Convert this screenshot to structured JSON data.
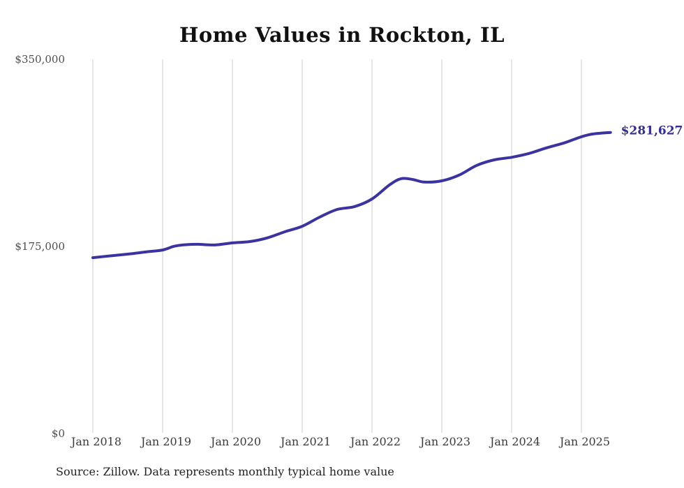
{
  "title": "Home Values in Rockton, IL",
  "source_note": "Source: Zillow. Data represents monthly typical home value",
  "colors": {
    "line": "#3b34a0",
    "end_label": "#332d96",
    "gridline": "#cccccc",
    "title_text": "#111111",
    "y_axis_text": "#4d4d4d",
    "x_axis_text": "#3a3a3a",
    "source_text": "#222222",
    "background": "#ffffff"
  },
  "chart_data": {
    "type": "line",
    "title": "Home Values in Rockton, IL",
    "xlabel": "",
    "ylabel": "",
    "ylim": [
      0,
      350000
    ],
    "y_ticks": [
      0,
      175000,
      350000
    ],
    "y_tick_labels": [
      "$0",
      "$175,000",
      "$350,000"
    ],
    "x_tick_years": [
      2018,
      2019,
      2020,
      2021,
      2022,
      2023,
      2024,
      2025
    ],
    "x_tick_labels": [
      "Jan 2018",
      "Jan 2019",
      "Jan 2020",
      "Jan 2021",
      "Jan 2022",
      "Jan 2023",
      "Jan 2024",
      "Jan 2025"
    ],
    "grid": "vertical-only",
    "legend": "none",
    "final_value": 281627,
    "final_value_label": "$281,627",
    "series": [
      {
        "name": "Monthly typical home value",
        "points": [
          [
            "2018-01",
            164500
          ],
          [
            "2018-04",
            166200
          ],
          [
            "2018-07",
            167800
          ],
          [
            "2018-10",
            169800
          ],
          [
            "2019-01",
            171700
          ],
          [
            "2019-03",
            175200
          ],
          [
            "2019-05",
            176600
          ],
          [
            "2019-07",
            177000
          ],
          [
            "2019-10",
            176400
          ],
          [
            "2020-01",
            178300
          ],
          [
            "2020-04",
            179600
          ],
          [
            "2020-07",
            183000
          ],
          [
            "2020-10",
            188700
          ],
          [
            "2021-01",
            193900
          ],
          [
            "2021-04",
            202400
          ],
          [
            "2021-07",
            209600
          ],
          [
            "2021-10",
            212300
          ],
          [
            "2022-01",
            219400
          ],
          [
            "2022-04",
            232500
          ],
          [
            "2022-06",
            238400
          ],
          [
            "2022-08",
            237600
          ],
          [
            "2022-10",
            235200
          ],
          [
            "2023-01",
            236400
          ],
          [
            "2023-04",
            241800
          ],
          [
            "2023-07",
            250800
          ],
          [
            "2023-10",
            256000
          ],
          [
            "2024-01",
            258400
          ],
          [
            "2024-04",
            262000
          ],
          [
            "2024-07",
            267200
          ],
          [
            "2024-10",
            271800
          ],
          [
            "2025-01",
            277600
          ],
          [
            "2025-03",
            280200
          ],
          [
            "2025-06",
            281627
          ]
        ]
      }
    ]
  }
}
